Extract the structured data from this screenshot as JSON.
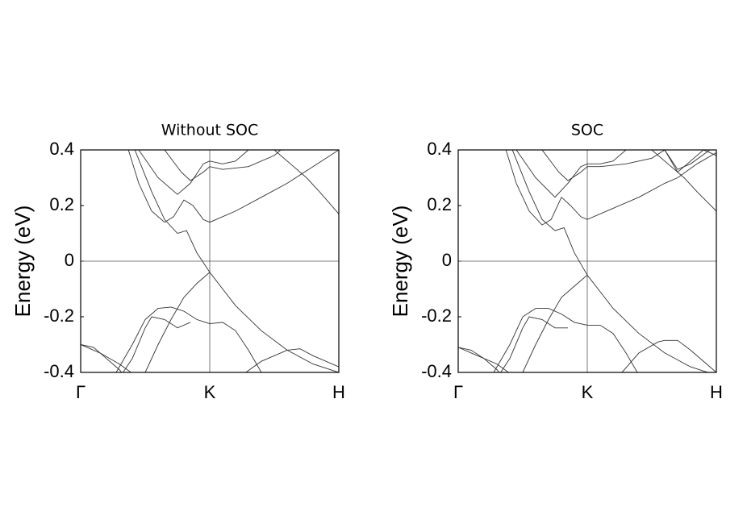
{
  "chart_data": [
    {
      "type": "line",
      "title": "Without SOC",
      "ylabel": "Energy (eV)",
      "xlim": [
        0,
        2
      ],
      "ylim": [
        -0.4,
        0.4
      ],
      "xticks": [
        {
          "value": 0,
          "label": "Γ"
        },
        {
          "value": 1,
          "label": "K"
        },
        {
          "value": 2,
          "label": "H"
        }
      ],
      "yticks": [
        -0.4,
        -0.2,
        0,
        0.2,
        0.4
      ],
      "series": [
        {
          "color": "#333333",
          "x": [
            0,
            0.1,
            0.2,
            0.3,
            0.35
          ],
          "values": [
            -0.3,
            -0.31,
            -0.35,
            -0.39,
            -0.42
          ]
        },
        {
          "color": "#333333",
          "x": [
            0,
            0.15,
            0.3,
            0.45
          ],
          "values": [
            -0.3,
            -0.33,
            -0.37,
            -0.42
          ]
        },
        {
          "color": "#333333",
          "x": [
            0.25,
            0.4,
            0.5,
            0.6,
            0.7,
            0.8,
            0.9,
            1.0,
            1.1,
            1.2,
            1.3,
            1.4
          ],
          "values": [
            -0.42,
            -0.3,
            -0.21,
            -0.17,
            -0.165,
            -0.18,
            -0.21,
            -0.225,
            -0.22,
            -0.25,
            -0.32,
            -0.4
          ]
        },
        {
          "color": "#333333",
          "x": [
            0.3,
            0.4,
            0.5,
            0.55,
            0.65,
            0.75,
            0.85
          ],
          "values": [
            -0.42,
            -0.35,
            -0.24,
            -0.2,
            -0.21,
            -0.24,
            -0.22
          ]
        },
        {
          "color": "#333333",
          "x": [
            0.5,
            0.6,
            0.7,
            0.8,
            0.9,
            1.0,
            1.1,
            1.2,
            1.4,
            1.6,
            1.8,
            2.0
          ],
          "values": [
            -0.4,
            -0.3,
            -0.21,
            -0.13,
            -0.08,
            -0.04,
            -0.1,
            -0.16,
            -0.25,
            -0.32,
            -0.37,
            -0.4
          ]
        },
        {
          "color": "#333333",
          "x": [
            1.25,
            1.4,
            1.6,
            1.7,
            1.8,
            2.0
          ],
          "values": [
            -0.41,
            -0.36,
            -0.32,
            -0.315,
            -0.34,
            -0.38
          ]
        },
        {
          "color": "#333333",
          "x": [
            0.37,
            0.45,
            0.55,
            0.65,
            0.72,
            0.8,
            0.87,
            0.95,
            1.0,
            1.2,
            1.4,
            1.6,
            1.8,
            2.0
          ],
          "values": [
            0.4,
            0.28,
            0.18,
            0.14,
            0.16,
            0.22,
            0.2,
            0.15,
            0.14,
            0.18,
            0.23,
            0.28,
            0.34,
            0.4
          ]
        },
        {
          "color": "#333333",
          "x": [
            0.42,
            0.55,
            0.65,
            0.75,
            0.82,
            0.9,
            1.0
          ],
          "values": [
            0.4,
            0.25,
            0.15,
            0.1,
            0.11,
            0.03,
            -0.04
          ]
        },
        {
          "color": "#333333",
          "x": [
            0.45,
            0.6,
            0.75,
            0.85,
            0.95,
            1.0,
            1.1,
            1.2,
            1.3
          ],
          "values": [
            0.4,
            0.3,
            0.24,
            0.28,
            0.35,
            0.36,
            0.35,
            0.36,
            0.4
          ]
        },
        {
          "color": "#333333",
          "x": [
            0.65,
            0.78,
            0.85,
            0.95,
            1.0,
            1.1,
            1.3,
            1.5,
            1.55
          ],
          "values": [
            0.4,
            0.32,
            0.29,
            0.32,
            0.34,
            0.33,
            0.34,
            0.38,
            0.4
          ]
        },
        {
          "color": "#333333",
          "x": [
            1.5,
            1.65,
            1.75,
            1.85,
            2.0
          ],
          "values": [
            0.4,
            0.34,
            0.3,
            0.25,
            0.17
          ]
        }
      ]
    },
    {
      "type": "line",
      "title": "SOC",
      "ylabel": "Energy (eV)",
      "xlim": [
        0,
        2
      ],
      "ylim": [
        -0.4,
        0.4
      ],
      "xticks": [
        {
          "value": 0,
          "label": "Γ"
        },
        {
          "value": 1,
          "label": "K"
        },
        {
          "value": 2,
          "label": "H"
        }
      ],
      "yticks": [
        -0.4,
        -0.2,
        0,
        0.2,
        0.4
      ],
      "series": [
        {
          "color": "#333333",
          "x": [
            0,
            0.1,
            0.2,
            0.3,
            0.35
          ],
          "values": [
            -0.31,
            -0.32,
            -0.35,
            -0.39,
            -0.42
          ]
        },
        {
          "color": "#333333",
          "x": [
            0,
            0.15,
            0.3,
            0.45
          ],
          "values": [
            -0.31,
            -0.34,
            -0.37,
            -0.42
          ]
        },
        {
          "color": "#333333",
          "x": [
            0.25,
            0.4,
            0.5,
            0.6,
            0.7,
            0.8,
            0.9,
            1.0,
            1.1,
            1.2,
            1.3,
            1.4
          ],
          "values": [
            -0.42,
            -0.3,
            -0.2,
            -0.17,
            -0.17,
            -0.19,
            -0.22,
            -0.23,
            -0.23,
            -0.26,
            -0.33,
            -0.41
          ]
        },
        {
          "color": "#333333",
          "x": [
            0.3,
            0.4,
            0.5,
            0.55,
            0.65,
            0.75,
            0.85
          ],
          "values": [
            -0.42,
            -0.35,
            -0.24,
            -0.2,
            -0.21,
            -0.24,
            -0.24
          ]
        },
        {
          "color": "#333333",
          "x": [
            0.5,
            0.6,
            0.7,
            0.8,
            0.9,
            1.0,
            1.1,
            1.2,
            1.4,
            1.6,
            1.8,
            2.0
          ],
          "values": [
            -0.4,
            -0.3,
            -0.21,
            -0.13,
            -0.09,
            -0.05,
            -0.11,
            -0.17,
            -0.26,
            -0.33,
            -0.38,
            -0.41
          ]
        },
        {
          "color": "#333333",
          "x": [
            1.25,
            1.4,
            1.55,
            1.6,
            1.7,
            1.8,
            2.0
          ],
          "values": [
            -0.41,
            -0.33,
            -0.29,
            -0.285,
            -0.285,
            -0.32,
            -0.4
          ]
        },
        {
          "color": "#333333",
          "x": [
            0.37,
            0.45,
            0.55,
            0.65,
            0.72,
            0.8,
            0.87,
            0.95,
            1.0,
            1.2,
            1.4,
            1.6,
            1.7,
            1.85,
            2.0
          ],
          "values": [
            0.4,
            0.28,
            0.18,
            0.13,
            0.15,
            0.23,
            0.2,
            0.16,
            0.15,
            0.19,
            0.23,
            0.28,
            0.3,
            0.35,
            0.39
          ]
        },
        {
          "color": "#333333",
          "x": [
            0.42,
            0.55,
            0.65,
            0.75,
            0.82,
            0.9,
            1.0
          ],
          "values": [
            0.4,
            0.25,
            0.15,
            0.11,
            0.12,
            0.03,
            -0.05
          ]
        },
        {
          "color": "#333333",
          "x": [
            0.45,
            0.6,
            0.75,
            0.85,
            0.95,
            1.0,
            1.1,
            1.2,
            1.3
          ],
          "values": [
            0.4,
            0.3,
            0.23,
            0.28,
            0.34,
            0.35,
            0.35,
            0.36,
            0.4
          ]
        },
        {
          "color": "#333333",
          "x": [
            0.65,
            0.78,
            0.85,
            0.95,
            1.0,
            1.1,
            1.3,
            1.5,
            1.6,
            1.7,
            1.8,
            1.95
          ],
          "values": [
            0.4,
            0.32,
            0.29,
            0.32,
            0.34,
            0.34,
            0.35,
            0.37,
            0.4,
            0.33,
            0.35,
            0.4
          ]
        },
        {
          "color": "#333333",
          "x": [
            1.6,
            1.7,
            1.8,
            1.9,
            2.0
          ],
          "values": [
            0.4,
            0.32,
            0.36,
            0.4,
            0.38
          ]
        },
        {
          "color": "#333333",
          "x": [
            1.5,
            1.65,
            1.75,
            1.85,
            2.0
          ],
          "values": [
            0.4,
            0.34,
            0.3,
            0.25,
            0.18
          ]
        }
      ]
    }
  ]
}
